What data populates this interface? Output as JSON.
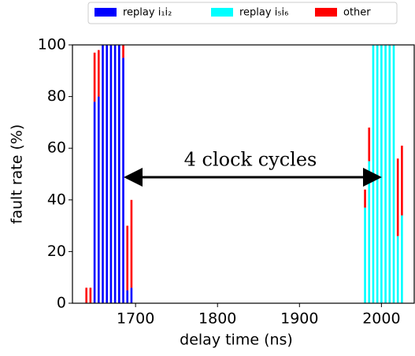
{
  "chart_data": {
    "type": "bar",
    "stacked": true,
    "xlabel": "delay time (ns)",
    "ylabel": "fault rate (%)",
    "annotation": "4 clock cycles",
    "x": [
      1640,
      1645,
      1650,
      1655,
      1660,
      1665,
      1670,
      1675,
      1680,
      1685,
      1690,
      1695,
      1980,
      1985,
      1990,
      1995,
      2000,
      2005,
      2010,
      2015,
      2020,
      2025
    ],
    "series": [
      {
        "name": "replay i₁i₂",
        "color": "#0000ff",
        "values": [
          0,
          0,
          78,
          80,
          100,
          100,
          100,
          100,
          100,
          95,
          5,
          6,
          0,
          0,
          0,
          0,
          0,
          0,
          0,
          0,
          0,
          0
        ]
      },
      {
        "name": "replay i₅i₆",
        "color": "#00ffff",
        "values": [
          0,
          0,
          0,
          0,
          0,
          0,
          0,
          0,
          0,
          0,
          0,
          0,
          37,
          55,
          100,
          100,
          100,
          100,
          100,
          100,
          26,
          34
        ]
      },
      {
        "name": "other",
        "color": "#ff0000",
        "values": [
          6,
          6,
          19,
          18,
          0,
          0,
          0,
          0,
          0,
          5,
          25,
          34,
          7,
          13,
          0,
          0,
          0,
          0,
          0,
          0,
          30,
          27
        ]
      }
    ],
    "xlim": [
      1623,
      2040
    ],
    "ylim": [
      0,
      100
    ],
    "xticks": [
      1700,
      1800,
      1900,
      2000
    ],
    "yticks": [
      0,
      20,
      40,
      60,
      80,
      100
    ],
    "legend": "top"
  }
}
